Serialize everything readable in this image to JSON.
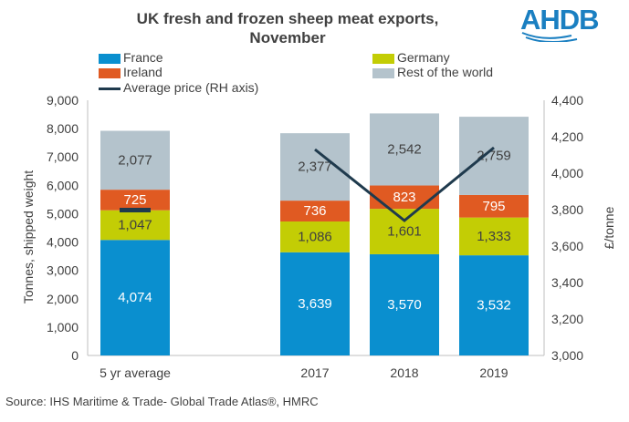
{
  "logo_text": "AHDB",
  "source": "Source: IHS Maritime & Trade- Global Trade Atlas®, HMRC",
  "chart_data": {
    "type": "bar",
    "stacked": true,
    "title": "UK fresh and frozen sheep meat exports, November",
    "title_lines": [
      "UK fresh and frozen sheep meat exports,",
      "November"
    ],
    "categories": [
      "5 yr average",
      "2017",
      "2018",
      "2019"
    ],
    "series": [
      {
        "name": "France",
        "color": "#0a8fcf",
        "values": [
          4074,
          3639,
          3570,
          3532
        ],
        "labels": [
          "4,074",
          "3,639",
          "3,570",
          "3,532"
        ]
      },
      {
        "name": "Germany",
        "color": "#c3cd05",
        "values": [
          1047,
          1086,
          1601,
          1333
        ],
        "labels": [
          "1,047",
          "1,086",
          "1,601",
          "1,333"
        ]
      },
      {
        "name": "Ireland",
        "color": "#e05a22",
        "values": [
          725,
          736,
          823,
          795
        ],
        "labels": [
          "725",
          "736",
          "823",
          "795"
        ]
      },
      {
        "name": "Rest of the world",
        "color": "#b4c3cc",
        "values": [
          2077,
          2377,
          2542,
          2759
        ],
        "labels": [
          "2,077",
          "2,377",
          "2,542",
          "2,759"
        ]
      }
    ],
    "line_series": {
      "name": "Average price (RH axis)",
      "color": "#1f3a4d",
      "five_year_marker": 3800,
      "values": [
        4130,
        3740,
        4140
      ]
    },
    "legend": [
      "France",
      "Germany",
      "Ireland",
      "Rest of the world",
      "Average price (RH axis)"
    ],
    "ylabel": "Tonnes, shipped weight",
    "ylim": [
      0,
      9000
    ],
    "yticks": [
      "0",
      "1,000",
      "2,000",
      "3,000",
      "4,000",
      "5,000",
      "6,000",
      "7,000",
      "8,000",
      "9,000"
    ],
    "y2label": "£/tonne",
    "y2lim": [
      3000,
      4400
    ],
    "y2ticks": [
      "3,000",
      "3,200",
      "3,400",
      "3,600",
      "3,800",
      "4,000",
      "4,200",
      "4,400"
    ]
  }
}
